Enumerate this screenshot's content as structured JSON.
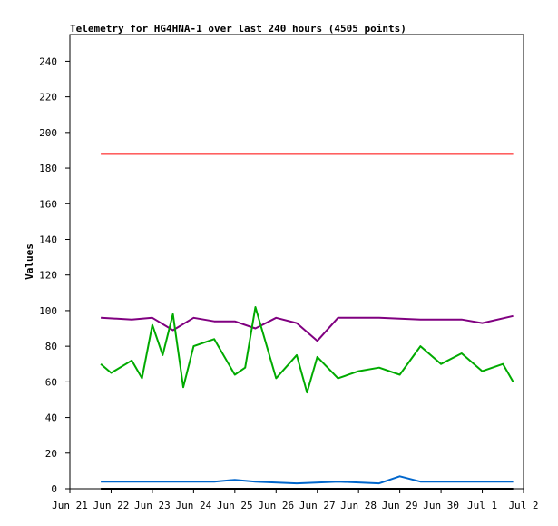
{
  "chart_data": {
    "type": "line",
    "title": "Telemetry for HG4HNA-1 over last 240 hours (4505 points)",
    "xlabel": "",
    "ylabel": "Values",
    "xlim": [
      "2025-06-21",
      "2025-07-02"
    ],
    "ylim": [
      0,
      255
    ],
    "x_ticks": [
      "Jun 21",
      "Jun 22",
      "Jun 23",
      "Jun 24",
      "Jun 25",
      "Jun 26",
      "Jun 27",
      "Jun 28",
      "Jun 29",
      "Jun 30",
      "Jul 1",
      "Jul 2"
    ],
    "y_ticks": [
      0,
      20,
      40,
      60,
      80,
      100,
      120,
      140,
      160,
      180,
      200,
      220,
      240
    ],
    "grid": false,
    "legend": "none",
    "series": [
      {
        "color": "#ff0000",
        "x": [
          "2025-06-21T18:00",
          "2025-06-22T12:00",
          "2025-06-23T12:00",
          "2025-06-24T12:00",
          "2025-06-25T12:00",
          "2025-06-26T12:00",
          "2025-06-27T12:00",
          "2025-06-28T12:00",
          "2025-06-29T12:00",
          "2025-06-30T12:00",
          "2025-07-01T18:00"
        ],
        "y": [
          188,
          188,
          188,
          188,
          188,
          188,
          188,
          188,
          188,
          188,
          188
        ]
      },
      {
        "color": "#800080",
        "x": [
          "2025-06-21T18:00",
          "2025-06-22T12:00",
          "2025-06-23T00:00",
          "2025-06-23T12:00",
          "2025-06-24T00:00",
          "2025-06-24T12:00",
          "2025-06-25T00:00",
          "2025-06-25T12:00",
          "2025-06-26T00:00",
          "2025-06-26T12:00",
          "2025-06-27T00:00",
          "2025-06-27T12:00",
          "2025-06-28T12:00",
          "2025-06-29T12:00",
          "2025-06-30T12:00",
          "2025-07-01T00:00",
          "2025-07-01T18:00"
        ],
        "y": [
          96,
          95,
          96,
          89,
          96,
          94,
          94,
          90,
          96,
          93,
          83,
          96,
          96,
          95,
          95,
          93,
          97
        ]
      },
      {
        "color": "#00aa00",
        "x": [
          "2025-06-21T18:00",
          "2025-06-22T00:00",
          "2025-06-22T12:00",
          "2025-06-22T18:00",
          "2025-06-23T00:00",
          "2025-06-23T06:00",
          "2025-06-23T12:00",
          "2025-06-23T18:00",
          "2025-06-24T00:00",
          "2025-06-24T12:00",
          "2025-06-25T00:00",
          "2025-06-25T06:00",
          "2025-06-25T12:00",
          "2025-06-26T00:00",
          "2025-06-26T12:00",
          "2025-06-26T18:00",
          "2025-06-27T00:00",
          "2025-06-27T12:00",
          "2025-06-28T00:00",
          "2025-06-28T12:00",
          "2025-06-29T00:00",
          "2025-06-29T12:00",
          "2025-06-30T00:00",
          "2025-06-30T12:00",
          "2025-07-01T00:00",
          "2025-07-01T12:00",
          "2025-07-01T18:00"
        ],
        "y": [
          70,
          65,
          72,
          62,
          92,
          75,
          98,
          57,
          80,
          84,
          64,
          68,
          102,
          62,
          75,
          54,
          74,
          62,
          66,
          68,
          64,
          80,
          70,
          76,
          66,
          70,
          60
        ]
      },
      {
        "color": "#0066cc",
        "x": [
          "2025-06-21T18:00",
          "2025-06-22T12:00",
          "2025-06-23T12:00",
          "2025-06-24T12:00",
          "2025-06-25T00:00",
          "2025-06-25T12:00",
          "2025-06-26T12:00",
          "2025-06-27T12:00",
          "2025-06-28T12:00",
          "2025-06-29T00:00",
          "2025-06-29T12:00",
          "2025-06-30T12:00",
          "2025-07-01T18:00"
        ],
        "y": [
          4,
          4,
          4,
          4,
          5,
          4,
          3,
          4,
          3,
          7,
          4,
          4,
          4
        ]
      },
      {
        "color": "#000000",
        "x": [
          "2025-06-21T18:00",
          "2025-07-01T18:00"
        ],
        "y": [
          0,
          0
        ]
      }
    ]
  }
}
